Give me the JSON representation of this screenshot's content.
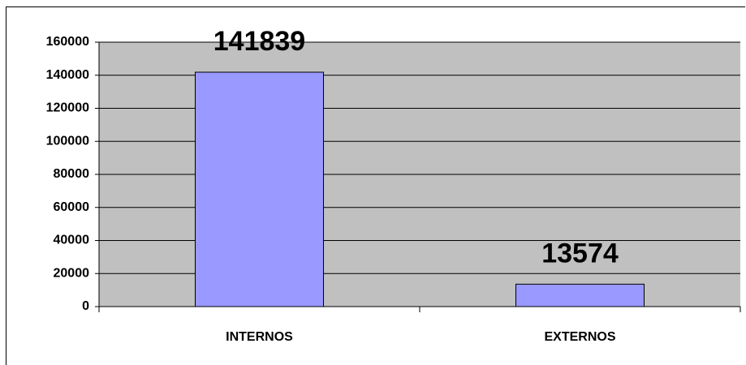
{
  "chart_data": {
    "type": "bar",
    "categories": [
      "INTERNOS",
      "EXTERNOS"
    ],
    "values": [
      141839,
      13574
    ],
    "color": "#9999ff",
    "ylim": [
      0,
      160000
    ],
    "yticks": [
      0,
      20000,
      40000,
      60000,
      80000,
      100000,
      120000,
      140000,
      160000
    ],
    "grid": true,
    "plot_background": "#c0c0c0"
  }
}
